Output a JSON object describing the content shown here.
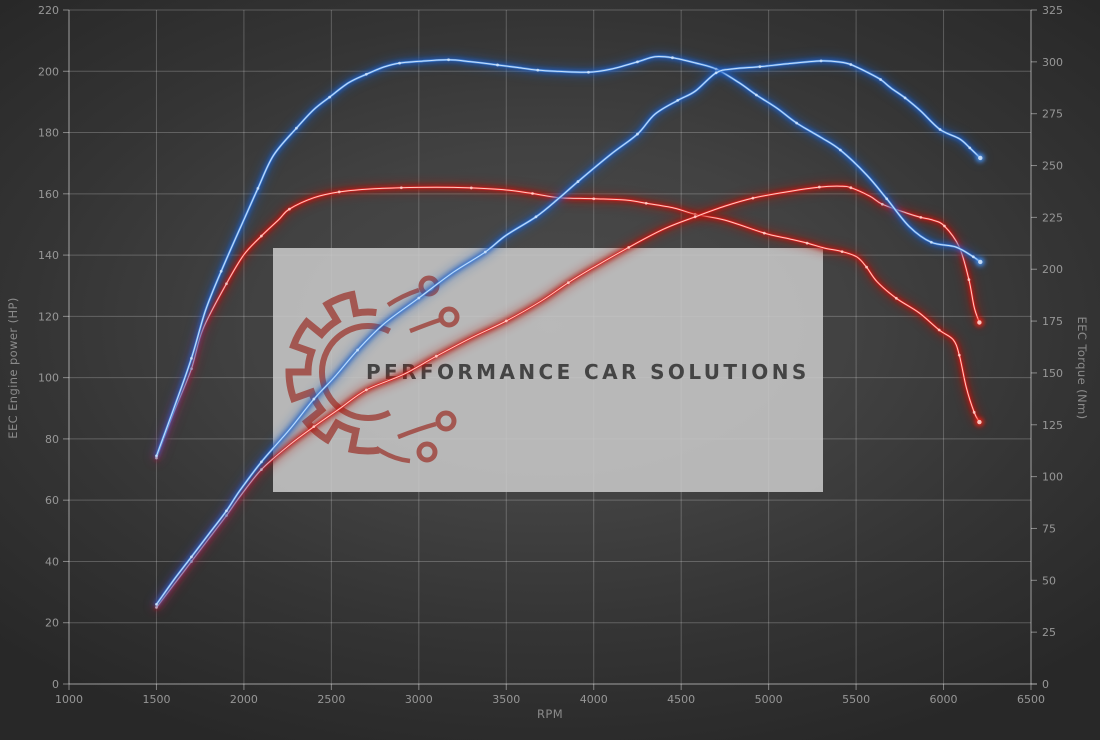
{
  "watermark": {
    "text": "PERFORMANCE CAR SOLUTIONS",
    "logo": "gear-circuit-logo",
    "box_color": "#c9c9c9",
    "box_opacity": 0.87,
    "logo_color": "#9e4038",
    "text_color": "#3c3c3c"
  },
  "colors": {
    "grid": "rgba(255,255,255,0.22)",
    "axis": "rgba(255,255,255,0.42)",
    "tick_text": "#979797",
    "axis_title": "#8a8a8a"
  },
  "chart_data": {
    "type": "line",
    "title": "",
    "xlabel": "RPM",
    "y_left_label": "EEC Engine power (HP)",
    "y_right_label": "EEC Torque (Nm)",
    "x_range": [
      1000,
      6500
    ],
    "y_left_range": [
      0,
      220
    ],
    "y_right_range": [
      0,
      325
    ],
    "grid": true,
    "legend": "none",
    "x_ticks": [
      1000,
      1500,
      2000,
      2500,
      3000,
      3500,
      4000,
      4500,
      5000,
      5500,
      6000,
      6500
    ],
    "y_left_ticks": [
      0,
      20,
      40,
      60,
      80,
      100,
      120,
      140,
      160,
      180,
      200,
      220
    ],
    "y_right_ticks": [
      0,
      25,
      50,
      75,
      100,
      125,
      150,
      175,
      200,
      225,
      250,
      275,
      300,
      325
    ],
    "series": [
      {
        "name": "torque-red",
        "axis": "right",
        "halo": "#b61210",
        "mid": "#e3251e",
        "core": "#ffd2cb",
        "points": [
          [
            1500,
            109
          ],
          [
            1600,
            131
          ],
          [
            1700,
            152
          ],
          [
            1765,
            171
          ],
          [
            1900,
            193
          ],
          [
            2000,
            207
          ],
          [
            2100,
            216
          ],
          [
            2200,
            224
          ],
          [
            2260,
            229
          ],
          [
            2400,
            234.5
          ],
          [
            2545,
            237.3
          ],
          [
            2700,
            238.6
          ],
          [
            2900,
            239.3
          ],
          [
            3100,
            239.5
          ],
          [
            3300,
            239.2
          ],
          [
            3500,
            238.2
          ],
          [
            3650,
            236.5
          ],
          [
            3800,
            234.5
          ],
          [
            4000,
            234
          ],
          [
            4180,
            233.4
          ],
          [
            4300,
            231.8
          ],
          [
            4460,
            229.5
          ],
          [
            4580,
            226.5
          ],
          [
            4750,
            223.7
          ],
          [
            4975,
            217.4
          ],
          [
            5100,
            215
          ],
          [
            5220,
            212.6
          ],
          [
            5320,
            210.2
          ],
          [
            5420,
            208.5
          ],
          [
            5505,
            205.9
          ],
          [
            5560,
            201
          ],
          [
            5620,
            194
          ],
          [
            5730,
            186
          ],
          [
            5860,
            179
          ],
          [
            5975,
            170.7
          ],
          [
            6055,
            166
          ],
          [
            6090,
            158.6
          ],
          [
            6130,
            143
          ],
          [
            6175,
            131
          ],
          [
            6205,
            126.3
          ]
        ]
      },
      {
        "name": "power-red",
        "axis": "left",
        "halo": "#b61210",
        "mid": "#e3251e",
        "core": "#ffd2cb",
        "points": [
          [
            1500,
            25
          ],
          [
            1600,
            32.5
          ],
          [
            1700,
            40
          ],
          [
            1800,
            47.5
          ],
          [
            1900,
            55
          ],
          [
            1975,
            61
          ],
          [
            2100,
            70
          ],
          [
            2260,
            78
          ],
          [
            2400,
            84
          ],
          [
            2550,
            90
          ],
          [
            2700,
            96
          ],
          [
            2910,
            101
          ],
          [
            3100,
            107
          ],
          [
            3300,
            113
          ],
          [
            3500,
            118.5
          ],
          [
            3700,
            125
          ],
          [
            3855,
            131
          ],
          [
            4000,
            136
          ],
          [
            4200,
            142.5
          ],
          [
            4400,
            148.5
          ],
          [
            4580,
            152.5
          ],
          [
            4750,
            156
          ],
          [
            4910,
            158.6
          ],
          [
            5100,
            160.6
          ],
          [
            5290,
            162.2
          ],
          [
            5410,
            162.5
          ],
          [
            5470,
            162
          ],
          [
            5580,
            159.2
          ],
          [
            5650,
            156.6
          ],
          [
            5790,
            153.7
          ],
          [
            5870,
            152.3
          ],
          [
            5940,
            151.4
          ],
          [
            6005,
            149.5
          ],
          [
            6090,
            142.6
          ],
          [
            6145,
            132
          ],
          [
            6175,
            123
          ],
          [
            6205,
            118
          ]
        ]
      },
      {
        "name": "torque-blue",
        "axis": "right",
        "halo": "#1f5dc2",
        "mid": "#4e92e6",
        "core": "#cfe3fa",
        "points": [
          [
            1500,
            110
          ],
          [
            1600,
            133
          ],
          [
            1700,
            157
          ],
          [
            1780,
            180
          ],
          [
            1870,
            199
          ],
          [
            1990,
            222
          ],
          [
            2080,
            239
          ],
          [
            2170,
            255
          ],
          [
            2300,
            268
          ],
          [
            2400,
            277
          ],
          [
            2490,
            283
          ],
          [
            2600,
            290
          ],
          [
            2700,
            294
          ],
          [
            2800,
            297.5
          ],
          [
            2890,
            299.4
          ],
          [
            3000,
            300.2
          ],
          [
            3170,
            301
          ],
          [
            3300,
            300
          ],
          [
            3450,
            298.5
          ],
          [
            3560,
            297.3
          ],
          [
            3680,
            296
          ],
          [
            3800,
            295.4
          ],
          [
            3970,
            295
          ],
          [
            4100,
            296.5
          ],
          [
            4250,
            300
          ],
          [
            4350,
            302.5
          ],
          [
            4450,
            302
          ],
          [
            4580,
            299.5
          ],
          [
            4700,
            296.5
          ],
          [
            4830,
            290
          ],
          [
            4930,
            284
          ],
          [
            5050,
            277.5
          ],
          [
            5160,
            270.5
          ],
          [
            5300,
            263.5
          ],
          [
            5410,
            257.5
          ],
          [
            5560,
            245.5
          ],
          [
            5675,
            234
          ],
          [
            5805,
            220.5
          ],
          [
            5930,
            213
          ],
          [
            6070,
            210.7
          ],
          [
            6170,
            206
          ],
          [
            6210,
            203.5
          ]
        ]
      },
      {
        "name": "power-blue",
        "axis": "left",
        "halo": "#1f5dc2",
        "mid": "#4e92e6",
        "core": "#cfe3fa",
        "points": [
          [
            1500,
            26
          ],
          [
            1600,
            34
          ],
          [
            1700,
            41.5
          ],
          [
            1800,
            49
          ],
          [
            1900,
            56.5
          ],
          [
            1975,
            63
          ],
          [
            2100,
            72.5
          ],
          [
            2260,
            83
          ],
          [
            2400,
            93
          ],
          [
            2515,
            100
          ],
          [
            2650,
            109
          ],
          [
            2800,
            117.5
          ],
          [
            3000,
            126
          ],
          [
            3200,
            134.5
          ],
          [
            3380,
            141
          ],
          [
            3500,
            146.5
          ],
          [
            3670,
            152.5
          ],
          [
            3800,
            158.5
          ],
          [
            3910,
            164
          ],
          [
            4100,
            173
          ],
          [
            4250,
            179.5
          ],
          [
            4350,
            186
          ],
          [
            4480,
            190.5
          ],
          [
            4580,
            193.5
          ],
          [
            4700,
            199.5
          ],
          [
            4800,
            200.8
          ],
          [
            4950,
            201.5
          ],
          [
            5100,
            202.4
          ],
          [
            5300,
            203.4
          ],
          [
            5410,
            203
          ],
          [
            5470,
            202.2
          ],
          [
            5560,
            199.8
          ],
          [
            5640,
            197.3
          ],
          [
            5700,
            194.5
          ],
          [
            5780,
            191.3
          ],
          [
            5870,
            187
          ],
          [
            5980,
            181
          ],
          [
            6090,
            178
          ],
          [
            6150,
            175
          ],
          [
            6210,
            171.7
          ]
        ]
      }
    ]
  }
}
